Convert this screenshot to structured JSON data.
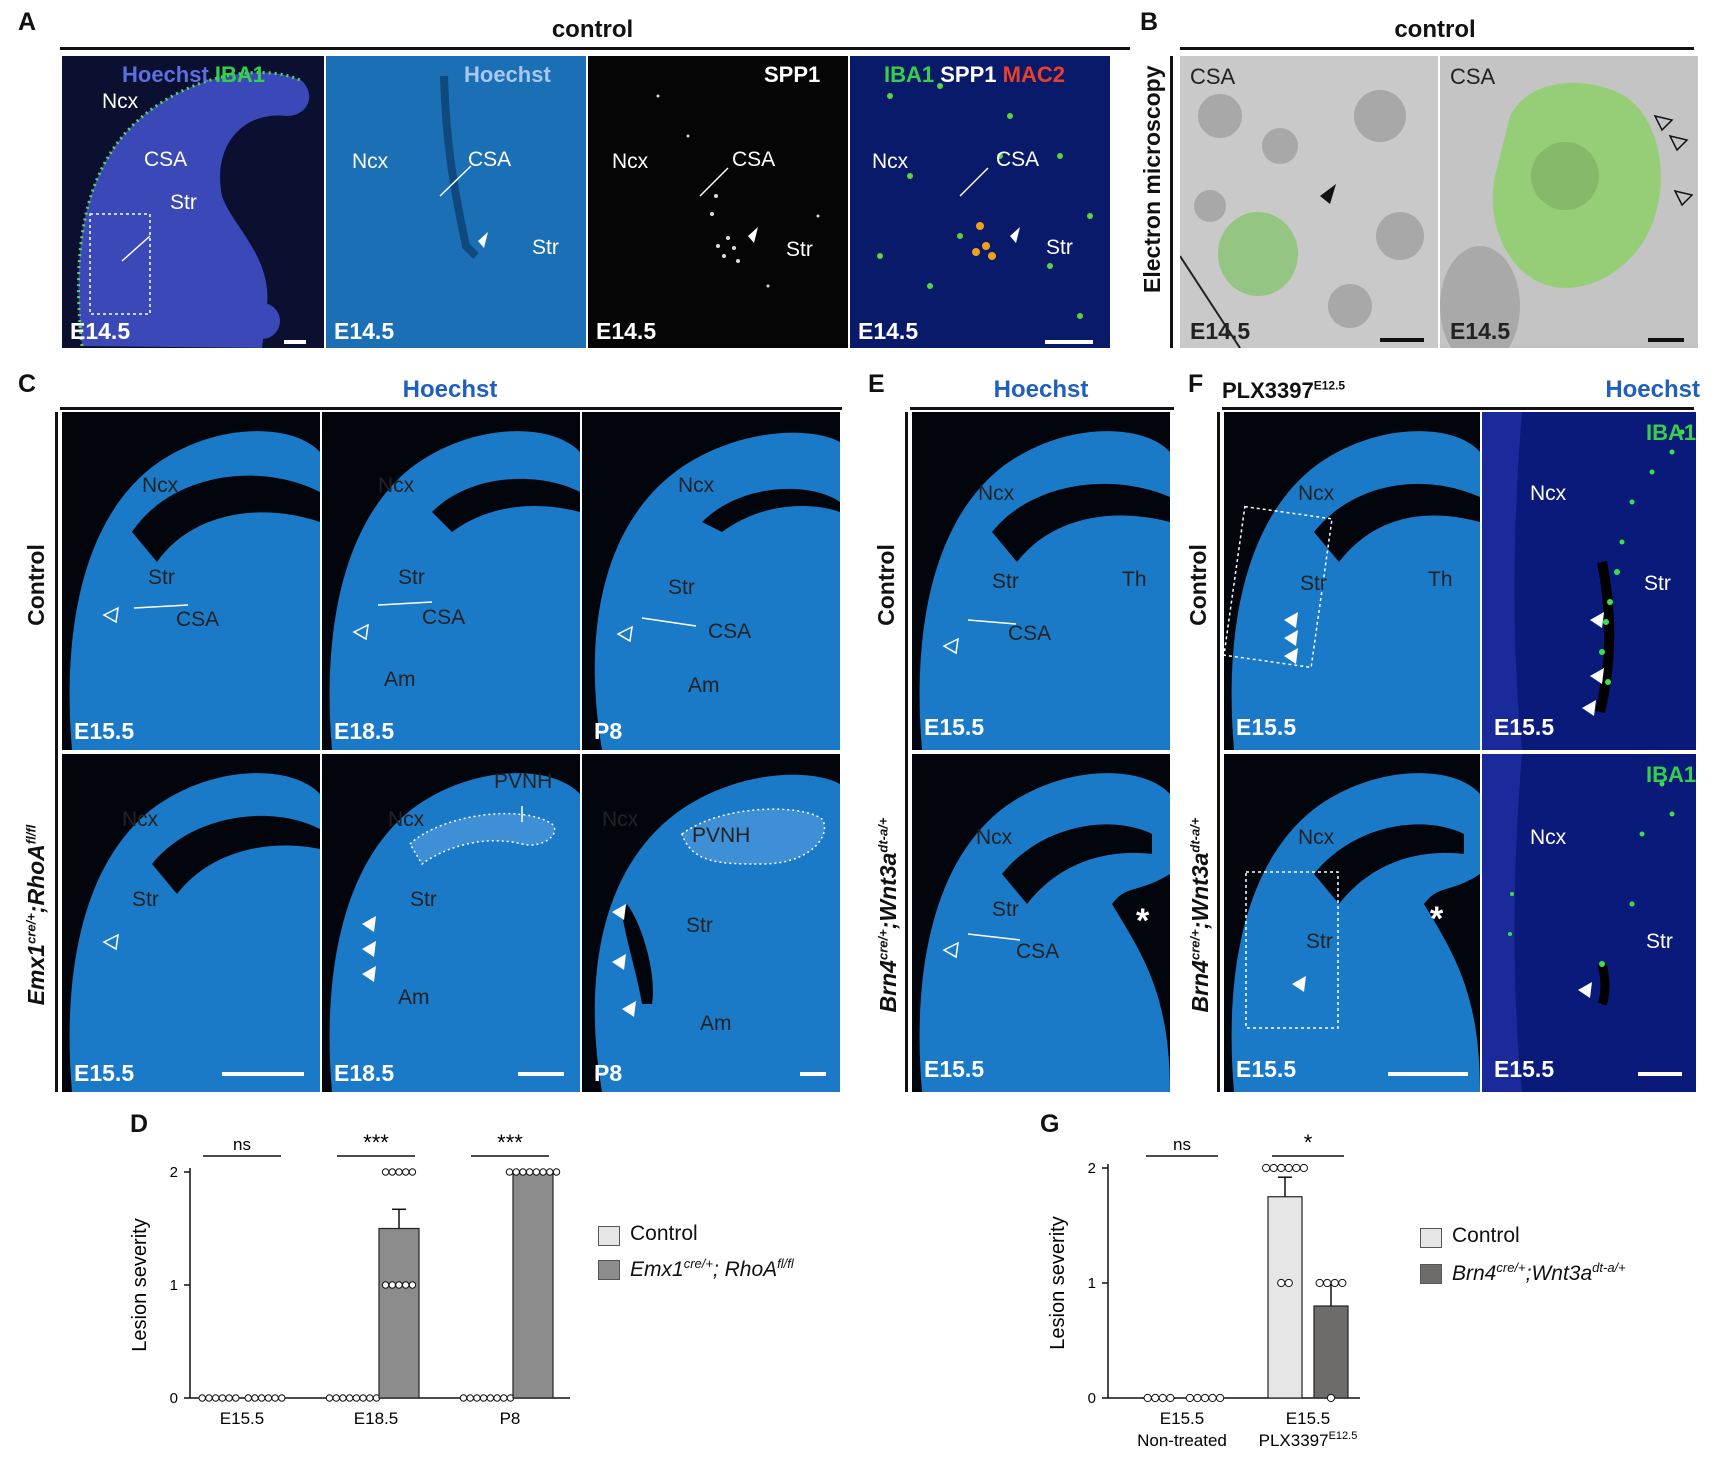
{
  "panels": {
    "A": {
      "letter": "A",
      "header": "control",
      "sub": [
        {
          "channels": [
            "Hoechst",
            "IBA1"
          ],
          "labels": [
            "Ncx",
            "CSA",
            "Str"
          ],
          "age": "E14.5"
        },
        {
          "channels": [
            "Hoechst"
          ],
          "labels": [
            "Ncx",
            "CSA",
            "Str"
          ],
          "age": "E14.5"
        },
        {
          "channels": [
            "SPP1"
          ],
          "labels": [
            "Ncx",
            "CSA",
            "Str"
          ],
          "age": "E14.5"
        },
        {
          "channels": [
            "IBA1",
            "SPP1",
            "MAC2"
          ],
          "labels": [
            "Ncx",
            "CSA",
            "Str"
          ],
          "age": "E14.5"
        }
      ]
    },
    "B": {
      "letter": "B",
      "header": "control",
      "side_label": "Electron microscopy",
      "sub": [
        {
          "label": "CSA",
          "age": "E14.5"
        },
        {
          "label": "CSA",
          "age": "E14.5"
        }
      ]
    },
    "C": {
      "letter": "C",
      "header": "Hoechst",
      "row1_label": "Control",
      "row2_label_main": "Emx1",
      "row2_label_sup1": "cre/+",
      "row2_label_mid": ";RhoA",
      "row2_label_sup2": "fl/fl",
      "row1": [
        {
          "labels": [
            "Ncx",
            "Str",
            "CSA"
          ],
          "age": "E15.5"
        },
        {
          "labels": [
            "Ncx",
            "Str",
            "CSA",
            "Am"
          ],
          "age": "E18.5"
        },
        {
          "labels": [
            "Ncx",
            "Str",
            "CSA",
            "Am"
          ],
          "age": "P8"
        }
      ],
      "row2": [
        {
          "labels": [
            "Ncx",
            "Str"
          ],
          "age": "E15.5"
        },
        {
          "labels": [
            "PVNH",
            "Ncx",
            "Str",
            "Am"
          ],
          "age": "E18.5"
        },
        {
          "labels": [
            "Ncx",
            "PVNH",
            "Str",
            "Am"
          ],
          "age": "P8"
        }
      ]
    },
    "E": {
      "letter": "E",
      "header": "Hoechst",
      "row1_label": "Control",
      "row2_label_main": "Brn4",
      "row2_label_sup1": "cre/+",
      "row2_label_mid": ";Wnt3a",
      "row2_label_sup2": "dt-a/+",
      "row1": {
        "labels": [
          "Ncx",
          "Str",
          "Th",
          "CSA"
        ],
        "age": "E15.5"
      },
      "row2": {
        "labels": [
          "Ncx",
          "Str",
          "CSA",
          "*"
        ],
        "age": "E15.5"
      }
    },
    "F": {
      "letter": "F",
      "header_left": "PLX3397",
      "header_left_sup": "E12.5",
      "header_right": "Hoechst",
      "row1_label": "Control",
      "row2_label_main": "Brn4",
      "row2_label_sup1": "cre/+",
      "row2_label_mid": ";Wnt3a",
      "row2_label_sup2": "dt-a/+",
      "row1": [
        {
          "labels": [
            "Ncx",
            "Str",
            "Th"
          ],
          "age": "E15.5"
        },
        {
          "channel": "IBA1",
          "labels": [
            "Ncx",
            "Str"
          ],
          "age": "E15.5"
        }
      ],
      "row2": [
        {
          "labels": [
            "Ncx",
            "Str",
            "*"
          ],
          "age": "E15.5"
        },
        {
          "channel": "IBA1",
          "labels": [
            "Ncx",
            "Str"
          ],
          "age": "E15.5"
        }
      ]
    }
  },
  "chart_data": [
    {
      "panel": "D",
      "type": "bar",
      "categories": [
        "E15.5",
        "E18.5",
        "P8"
      ],
      "ylabel": "Lesion severity",
      "ylim": [
        0,
        2
      ],
      "yticks": [
        "0",
        "1",
        "2"
      ],
      "series": [
        {
          "name": "Control",
          "color": "#e6e6e6",
          "values": [
            0,
            0,
            0
          ],
          "points": [
            [
              0,
              0,
              0,
              0,
              0,
              0
            ],
            [
              0,
              0,
              0,
              0,
              0,
              0,
              0,
              0
            ],
            [
              0,
              0,
              0,
              0,
              0,
              0,
              0,
              0
            ]
          ]
        },
        {
          "name_main": "Emx1",
          "name_sup1": "cre/+",
          "name_mid": "; RhoA",
          "name_sup2": "fl/fl",
          "color": "#8c8c8c",
          "values": [
            0,
            1.5,
            2.0
          ],
          "err": [
            0,
            0.17,
            0
          ],
          "points": [
            [
              0,
              0,
              0,
              0,
              0,
              0
            ],
            [
              2,
              2,
              2,
              2,
              2,
              1,
              1,
              1,
              1,
              1
            ],
            [
              2,
              2,
              2,
              2,
              2,
              2,
              2,
              2
            ]
          ]
        }
      ],
      "significance": [
        "ns",
        "***",
        "***"
      ]
    },
    {
      "panel": "G",
      "type": "bar",
      "categories": [
        [
          "E15.5",
          "Non-treated"
        ],
        [
          "E15.5",
          "PLX3397",
          "E12.5"
        ]
      ],
      "ylabel": "Lesion severity",
      "ylim": [
        0,
        2
      ],
      "yticks": [
        "0",
        "1",
        "2"
      ],
      "series": [
        {
          "name": "Control",
          "color": "#e6e6e6",
          "values": [
            0,
            1.75
          ],
          "err": [
            0,
            0.17
          ],
          "points": [
            [
              0,
              0,
              0,
              0
            ],
            [
              2,
              2,
              2,
              2,
              2,
              2,
              1,
              1
            ]
          ]
        },
        {
          "name_main": "Brn4",
          "name_sup1": "cre/+",
          "name_mid": ";Wnt3a",
          "name_sup2": "dt-a/+",
          "color": "#6e6b6b",
          "values": [
            0,
            0.8
          ],
          "err": [
            0,
            0.2
          ],
          "points": [
            [
              0,
              0,
              0,
              0,
              0
            ],
            [
              1,
              1,
              1,
              1,
              0
            ]
          ]
        }
      ],
      "significance": [
        "ns",
        "*"
      ]
    }
  ]
}
